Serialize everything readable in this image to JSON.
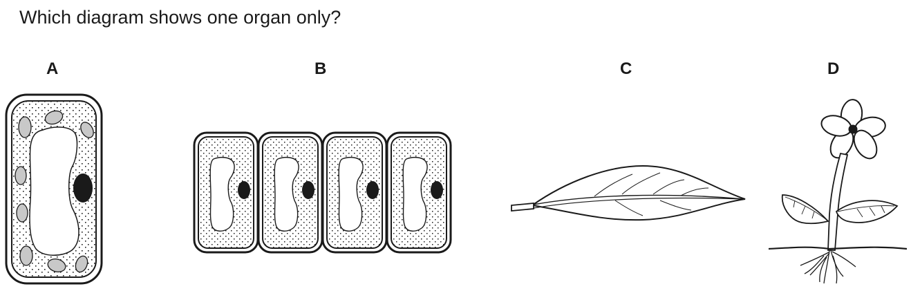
{
  "question": "Which diagram shows one organ only?",
  "options": [
    {
      "label": "A",
      "depicts": "single-plant-cell"
    },
    {
      "label": "B",
      "depicts": "row-of-four-cells"
    },
    {
      "label": "C",
      "depicts": "leaf"
    },
    {
      "label": "D",
      "depicts": "flowering-plant"
    }
  ],
  "colors": {
    "ink": "#1a1a1a",
    "chloroplast": "#c8c8c8",
    "background": "#ffffff"
  }
}
